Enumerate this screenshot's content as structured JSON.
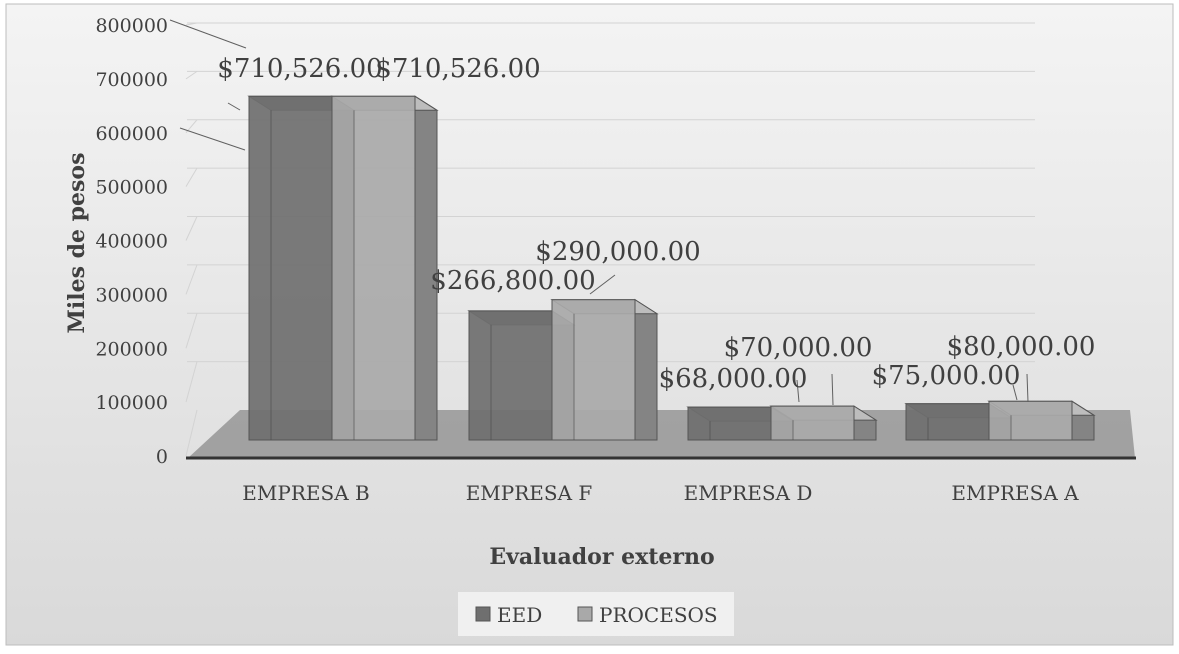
{
  "chart_data": {
    "type": "bar",
    "title": "",
    "xlabel": "Evaluador externo",
    "ylabel": "Miles de pesos",
    "ylim": [
      0,
      800000
    ],
    "yticks": [
      0,
      100000,
      200000,
      300000,
      400000,
      500000,
      600000,
      700000,
      800000
    ],
    "grid": true,
    "legend_position": "bottom",
    "categories": [
      "EMPRESA B",
      "EMPRESA F",
      "EMPRESA D",
      "EMPRESA A"
    ],
    "series": [
      {
        "name": "EED",
        "values": [
          710526,
          266800,
          68000,
          75000
        ],
        "labels": [
          "$710,526.00",
          "$266,800.00",
          "$68,000.00",
          "$75,000.00"
        ],
        "color": "#6f6f6f"
      },
      {
        "name": "PROCESOS",
        "values": [
          710526,
          290000,
          70000,
          80000
        ],
        "labels": [
          "$710,526.00",
          "$290,000.00",
          "$70,000.00",
          "$80,000.00"
        ],
        "color": "#a9a9a9"
      }
    ]
  }
}
